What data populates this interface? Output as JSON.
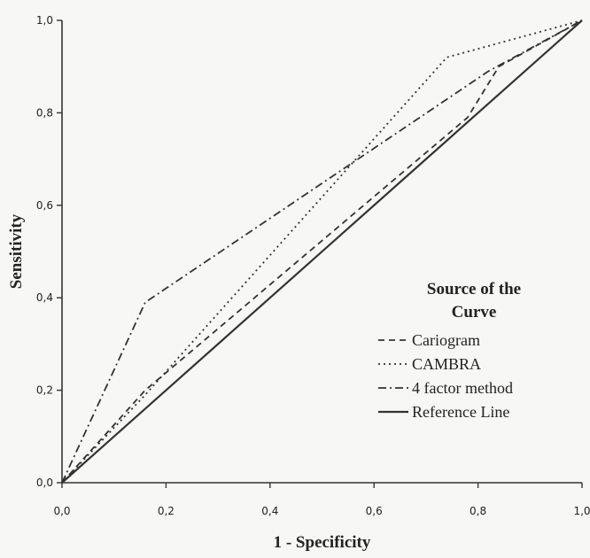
{
  "chart_data": {
    "type": "line",
    "title": "",
    "xlabel": "1 - Specificity",
    "ylabel": "Sensitivity",
    "xlim": [
      0,
      1
    ],
    "ylim": [
      0,
      1
    ],
    "x_ticks": [
      "0,0",
      "0,2",
      "0,4",
      "0,6",
      "0,8",
      "1,0"
    ],
    "y_ticks": [
      "0,0",
      "0,2",
      "0,4",
      "0,6",
      "0,8",
      "1,0"
    ],
    "grid": false,
    "legend": {
      "title_line1": "Source of the",
      "title_line2": "Curve",
      "placement": "right"
    },
    "series": [
      {
        "name": "Cariogram",
        "style": "dashed",
        "color": "#333333",
        "points": [
          [
            0,
            0
          ],
          [
            0.16,
            0.2
          ],
          [
            0.78,
            0.79
          ],
          [
            0.84,
            0.9
          ],
          [
            1,
            1
          ]
        ]
      },
      {
        "name": "CAMBRA",
        "style": "dotted",
        "color": "#333333",
        "points": [
          [
            0,
            0
          ],
          [
            0.16,
            0.19
          ],
          [
            0.74,
            0.92
          ],
          [
            1,
            1
          ]
        ]
      },
      {
        "name": "4 factor method",
        "style": "dashdot",
        "color": "#333333",
        "points": [
          [
            0,
            0
          ],
          [
            0.16,
            0.39
          ],
          [
            0.82,
            0.89
          ],
          [
            1,
            1
          ]
        ]
      },
      {
        "name": "Reference Line",
        "style": "solid",
        "color": "#333333",
        "points": [
          [
            0,
            0
          ],
          [
            1,
            1
          ]
        ]
      }
    ]
  }
}
